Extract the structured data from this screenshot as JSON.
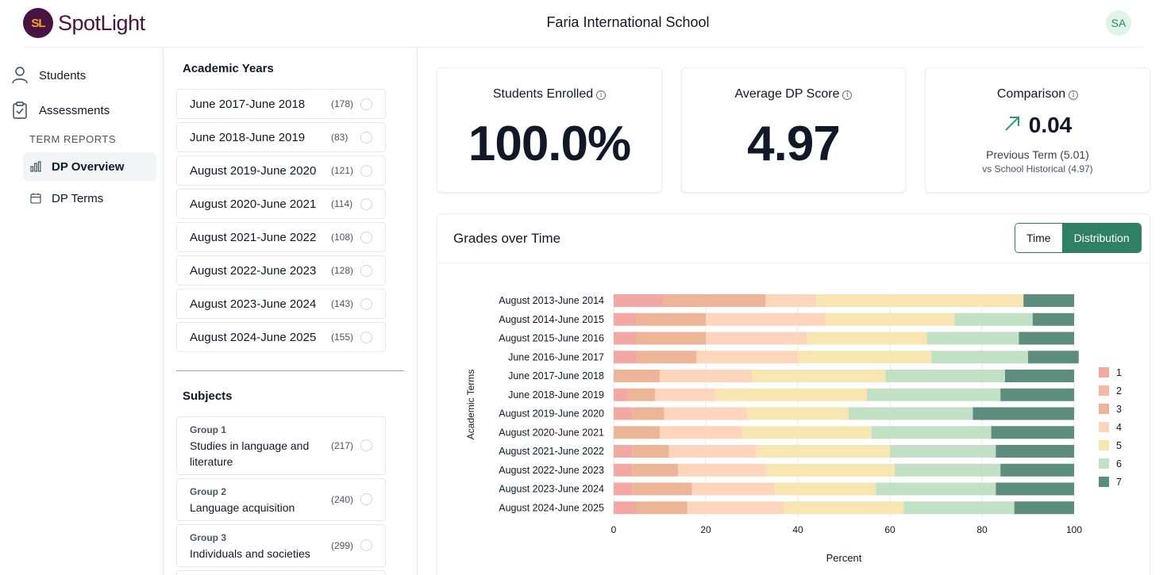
{
  "header": {
    "logo_mark": "SL",
    "logo_text": "SpotLight",
    "school": "Faria International School",
    "avatar": "SA"
  },
  "nav": {
    "students": "Students",
    "assessments": "Assessments",
    "section": "TERM REPORTS",
    "dp_overview": "DP Overview",
    "dp_terms": "DP Terms"
  },
  "filters": {
    "years_heading": "Academic Years",
    "years": [
      {
        "label": "June 2017-June 2018",
        "count": "(178)"
      },
      {
        "label": "June 2018-June 2019",
        "count": "(83)"
      },
      {
        "label": "August 2019-June 2020",
        "count": "(121)"
      },
      {
        "label": "August 2020-June 2021",
        "count": "(114)"
      },
      {
        "label": "August 2021-June 2022",
        "count": "(108)"
      },
      {
        "label": "August 2022-June 2023",
        "count": "(128)"
      },
      {
        "label": "August 2023-June 2024",
        "count": "(143)"
      },
      {
        "label": "August 2024-June 2025",
        "count": "(155)"
      }
    ],
    "subjects_heading": "Subjects",
    "subjects": [
      {
        "group": "Group 1",
        "name": "Studies in language and literature",
        "count": "(217)"
      },
      {
        "group": "Group 2",
        "name": "Language acquisition",
        "count": "(240)"
      },
      {
        "group": "Group 3",
        "name": "Individuals and societies",
        "count": "(299)"
      }
    ]
  },
  "kpis": {
    "enrolled_title": "Students Enrolled",
    "enrolled_value": "100.0%",
    "avg_title": "Average DP Score",
    "avg_value": "4.97",
    "cmp_title": "Comparison",
    "cmp_value": "0.04",
    "cmp_prev": "Previous Term (5.01)",
    "cmp_hist": "vs School Historical (4.97)",
    "info_glyph": "i",
    "trend_icon": "arrow-up-right-icon",
    "trend_color": "#2f9a72"
  },
  "chart_panel": {
    "title": "Grades over Time",
    "toggle_time": "Time",
    "toggle_distribution": "Distribution"
  },
  "chart_data": {
    "type": "bar",
    "orientation": "horizontal",
    "stacked": true,
    "categories": [
      "August 2013-June 2014",
      "August 2014-June 2015",
      "August 2015-June 2016",
      "June 2016-June 2017",
      "June 2017-June 2018",
      "June 2018-June 2019",
      "August 2019-June 2020",
      "August 2020-June 2021",
      "August 2021-June 2022",
      "August 2022-June 2023",
      "August 2023-June 2024",
      "August 2024-June 2025"
    ],
    "series": [
      {
        "name": "1",
        "color": "#f4a8a3",
        "values": [
          11,
          5,
          5,
          5,
          0,
          3,
          4,
          0,
          4,
          4,
          4,
          5
        ]
      },
      {
        "name": "2",
        "color": "#f5b8a2",
        "values": [
          0,
          0,
          0,
          0,
          0,
          0,
          0,
          0,
          0,
          0,
          0,
          0
        ]
      },
      {
        "name": "3",
        "color": "#edb597",
        "values": [
          22,
          15,
          15,
          13,
          10,
          6,
          7,
          10,
          8,
          10,
          13,
          11
        ]
      },
      {
        "name": "4",
        "color": "#fdd5bd",
        "values": [
          11,
          26,
          22,
          22,
          20,
          13,
          18,
          18,
          19,
          19,
          18,
          21
        ]
      },
      {
        "name": "5",
        "color": "#f7e6b2",
        "values": [
          45,
          28,
          26,
          29,
          29,
          33,
          22,
          28,
          29,
          28,
          22,
          26
        ]
      },
      {
        "name": "6",
        "color": "#c2e0c4",
        "values": [
          0,
          17,
          20,
          21,
          26,
          29,
          27,
          26,
          23,
          23,
          26,
          24
        ]
      },
      {
        "name": "7",
        "color": "#5d8e7d",
        "values": [
          11,
          9,
          12,
          11,
          15,
          16,
          22,
          18,
          17,
          16,
          17,
          13
        ]
      }
    ],
    "xlabel": "Percent",
    "ylabel": "Academic Terms",
    "xlim": [
      0,
      100
    ],
    "xticks": [
      0,
      20,
      40,
      60,
      80,
      100
    ],
    "legend_position": "right",
    "grid": true
  }
}
